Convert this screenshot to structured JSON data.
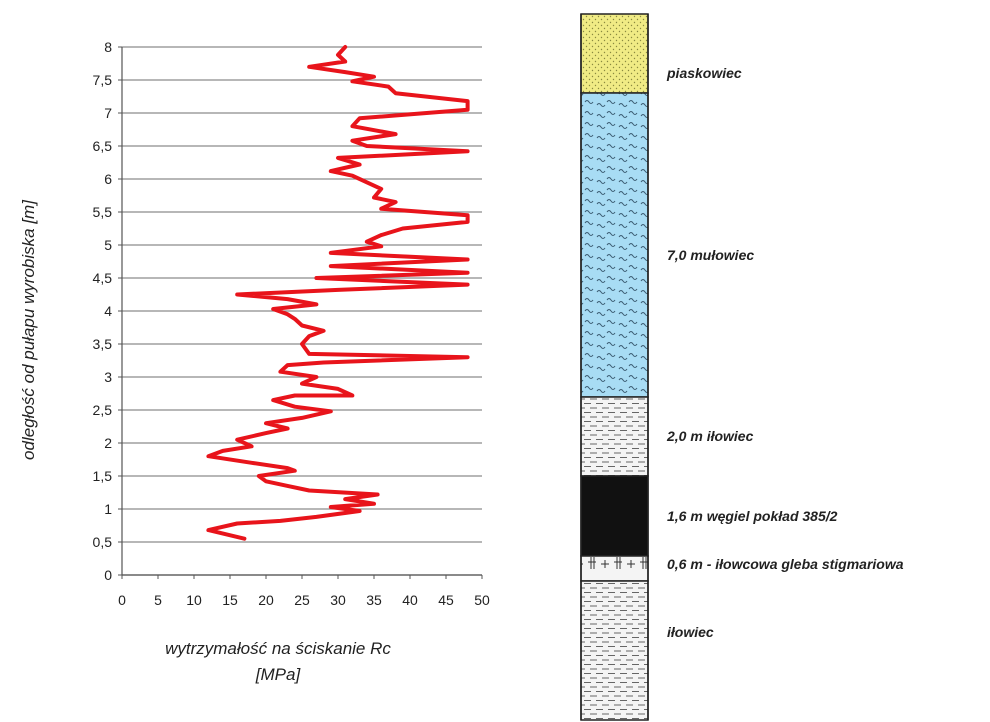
{
  "chart_data": {
    "type": "line",
    "xlabel_line1": "wytrzymałość na ściskanie Rc",
    "xlabel_line2": "[MPa]",
    "ylabel": "odległość od pułapu wyrobiska [m]",
    "xlim": [
      0,
      50
    ],
    "ylim": [
      0,
      8
    ],
    "x_ticks": [
      "0",
      "5",
      "10",
      "15",
      "20",
      "25",
      "30",
      "35",
      "40",
      "45",
      "50"
    ],
    "y_ticks": [
      "0",
      "0,5",
      "1",
      "1,5",
      "2",
      "2,5",
      "3",
      "3,5",
      "4",
      "4,5",
      "5",
      "5,5",
      "6",
      "6,5",
      "7",
      "7,5",
      "8"
    ],
    "grid": "horizontal",
    "line_color": "#e8141b",
    "series": [
      {
        "points": [
          [
            17,
            0.55
          ],
          [
            12,
            0.68
          ],
          [
            16,
            0.78
          ],
          [
            22,
            0.82
          ],
          [
            27,
            0.88
          ],
          [
            33,
            0.97
          ],
          [
            29,
            1.03
          ],
          [
            35,
            1.08
          ],
          [
            31,
            1.15
          ],
          [
            35.5,
            1.22
          ],
          [
            26,
            1.28
          ],
          [
            23,
            1.35
          ],
          [
            20,
            1.42
          ],
          [
            19,
            1.5
          ],
          [
            24,
            1.58
          ],
          [
            23,
            1.62
          ],
          [
            18,
            1.7
          ],
          [
            12,
            1.8
          ],
          [
            14,
            1.88
          ],
          [
            18,
            1.95
          ],
          [
            16,
            2.05
          ],
          [
            20,
            2.15
          ],
          [
            23,
            2.22
          ],
          [
            20,
            2.3
          ],
          [
            25,
            2.38
          ],
          [
            29,
            2.48
          ],
          [
            24,
            2.55
          ],
          [
            21,
            2.65
          ],
          [
            24,
            2.72
          ],
          [
            32,
            2.72
          ],
          [
            30,
            2.82
          ],
          [
            25,
            2.9
          ],
          [
            27,
            3.0
          ],
          [
            22,
            3.08
          ],
          [
            23,
            3.18
          ],
          [
            28,
            3.22
          ],
          [
            48,
            3.3
          ],
          [
            26,
            3.35
          ],
          [
            25,
            3.5
          ],
          [
            26,
            3.62
          ],
          [
            28,
            3.7
          ],
          [
            25,
            3.78
          ],
          [
            24,
            3.88
          ],
          [
            23,
            3.95
          ],
          [
            21,
            4.03
          ],
          [
            27,
            4.1
          ],
          [
            23,
            4.18
          ],
          [
            16,
            4.25
          ],
          [
            30,
            4.32
          ],
          [
            48,
            4.4
          ],
          [
            27,
            4.5
          ],
          [
            48,
            4.58
          ],
          [
            29,
            4.68
          ],
          [
            48,
            4.78
          ],
          [
            29,
            4.88
          ],
          [
            36,
            4.98
          ],
          [
            34,
            5.05
          ],
          [
            36,
            5.15
          ],
          [
            39,
            5.25
          ],
          [
            48,
            5.35
          ],
          [
            48,
            5.45
          ],
          [
            36,
            5.55
          ],
          [
            38,
            5.65
          ],
          [
            35,
            5.72
          ],
          [
            36,
            5.85
          ],
          [
            34,
            5.95
          ],
          [
            32,
            6.05
          ],
          [
            29,
            6.12
          ],
          [
            33,
            6.22
          ],
          [
            30,
            6.32
          ],
          [
            48,
            6.42
          ],
          [
            34,
            6.5
          ],
          [
            32,
            6.58
          ],
          [
            38,
            6.68
          ],
          [
            32,
            6.8
          ],
          [
            33,
            6.92
          ],
          [
            48,
            7.05
          ],
          [
            48,
            7.18
          ],
          [
            38,
            7.3
          ],
          [
            37,
            7.4
          ],
          [
            32,
            7.48
          ],
          [
            35,
            7.55
          ],
          [
            31,
            7.62
          ],
          [
            26,
            7.7
          ],
          [
            31,
            7.78
          ],
          [
            30,
            7.88
          ],
          [
            31,
            8.0
          ]
        ]
      }
    ]
  },
  "column": {
    "layers": [
      {
        "label": "piaskowiec",
        "pattern": "dots",
        "fill": "#f0eb85"
      },
      {
        "label": "7,0 mułowiec",
        "pattern": "waves",
        "fill": "#a8dcf4"
      },
      {
        "label": "2,0 m iłowiec",
        "pattern": "dashes",
        "fill": "#f4f4f4"
      },
      {
        "label": "1,6 m   węgiel pokład 385/2",
        "pattern": "solid",
        "fill": "#111111"
      },
      {
        "label": "0,6 m - iłowcowa gleba stigmariowa",
        "pattern": "roots",
        "fill": "#f4f4f4"
      },
      {
        "label": "iłowiec",
        "pattern": "dashes",
        "fill": "#f4f4f4"
      }
    ]
  }
}
